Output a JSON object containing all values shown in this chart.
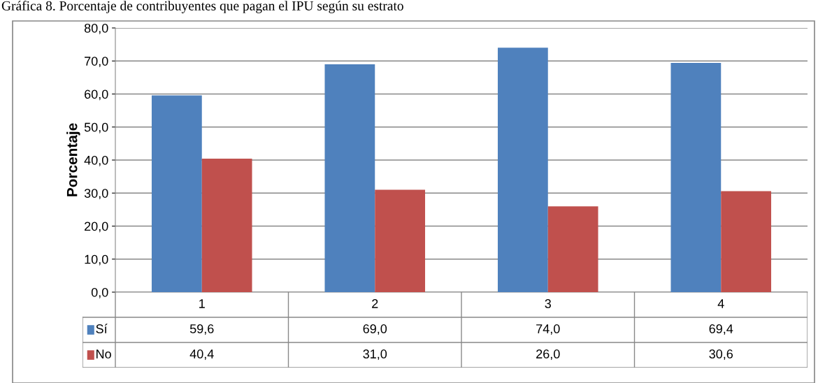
{
  "chart_data": {
    "type": "bar",
    "title": "Gráfica 8. Porcentaje de contribuyentes que pagan el IPU según su estrato",
    "ylabel": "Porcentaje",
    "categories": [
      "1",
      "2",
      "3",
      "4"
    ],
    "series": [
      {
        "name": "Sí",
        "color": "#4f81bd",
        "values": [
          59.6,
          69.0,
          74.0,
          69.4
        ],
        "value_labels": [
          "59,6",
          "69,0",
          "74,0",
          "69,4"
        ]
      },
      {
        "name": "No",
        "color": "#c0504d",
        "values": [
          40.4,
          31.0,
          26.0,
          30.6
        ],
        "value_labels": [
          "40,4",
          "31,0",
          "26,0",
          "30,6"
        ]
      }
    ],
    "ylim": [
      0,
      80
    ],
    "yticks": [
      {
        "value": 0,
        "label": "0,0"
      },
      {
        "value": 10,
        "label": "10,0"
      },
      {
        "value": 20,
        "label": "20,0"
      },
      {
        "value": 30,
        "label": "30,0"
      },
      {
        "value": 40,
        "label": "40,0"
      },
      {
        "value": 50,
        "label": "50,0"
      },
      {
        "value": 60,
        "label": "60,0"
      },
      {
        "value": 70,
        "label": "70,0"
      },
      {
        "value": 80,
        "label": "80,0"
      }
    ],
    "grid": "y",
    "legend": "bottom"
  }
}
